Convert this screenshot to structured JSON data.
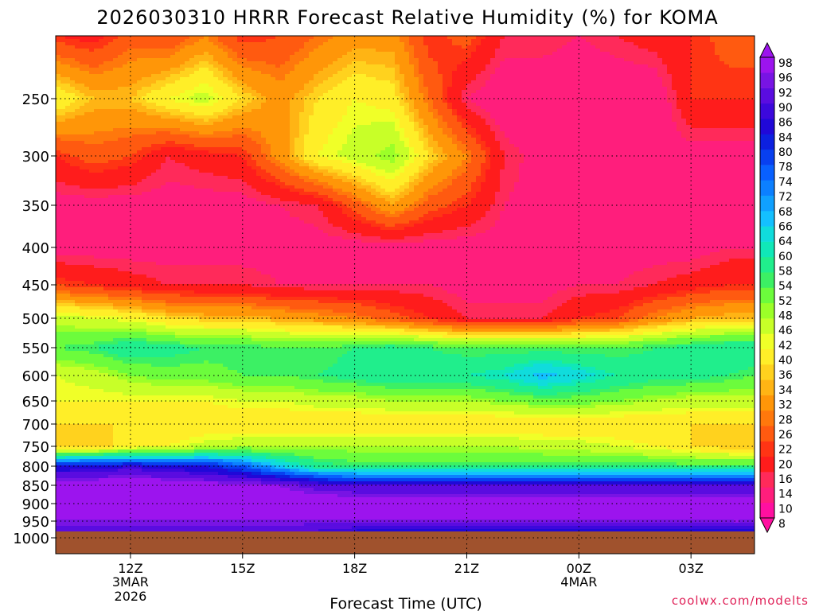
{
  "chart_data": {
    "type": "heatmap",
    "title": "2026030310 HRRR Forecast Relative Humidity (%) for KOMA",
    "xlabel": "Forecast Time (UTC)",
    "ylabel": "",
    "watermark": "coolwx.com/modelts",
    "x_range_hours": [
      10.0,
      28.7
    ],
    "y_range_hpa": [
      200,
      1030
    ],
    "x_ticks": [
      {
        "hour": 12,
        "label": "12Z",
        "sub1": "3MAR",
        "sub2": "2026"
      },
      {
        "hour": 15,
        "label": "15Z",
        "sub1": "",
        "sub2": ""
      },
      {
        "hour": 18,
        "label": "18Z",
        "sub1": "",
        "sub2": ""
      },
      {
        "hour": 21,
        "label": "21Z",
        "sub1": "",
        "sub2": ""
      },
      {
        "hour": 24,
        "label": "00Z",
        "sub1": "4MAR",
        "sub2": ""
      },
      {
        "hour": 27,
        "label": "03Z",
        "sub1": "",
        "sub2": ""
      }
    ],
    "y_ticks": [
      250,
      300,
      350,
      400,
      450,
      500,
      550,
      600,
      650,
      700,
      750,
      800,
      850,
      900,
      950,
      1000
    ],
    "y_tick_labels": [
      "250",
      "300",
      "350",
      "400",
      "450",
      "500",
      "550",
      "600",
      "650",
      "700",
      "750",
      "800",
      "850",
      "900",
      "950",
      "1000"
    ],
    "colorbar_levels": [
      8,
      10,
      14,
      16,
      20,
      22,
      26,
      28,
      32,
      34,
      36,
      40,
      42,
      46,
      48,
      52,
      54,
      58,
      60,
      64,
      66,
      68,
      72,
      74,
      78,
      80,
      84,
      86,
      90,
      92,
      96,
      98
    ],
    "colorbar_labels": [
      "8",
      "10",
      "14",
      "16",
      "20",
      "22",
      "26",
      "28",
      "32",
      "34",
      "36",
      "40",
      "42",
      "46",
      "48",
      "52",
      "54",
      "58",
      "60",
      "64",
      "66",
      "68",
      "72",
      "74",
      "78",
      "80",
      "84",
      "86",
      "90",
      "92",
      "96",
      "98"
    ],
    "colorbar_colors": [
      "#ff10a0",
      "#ff1e7c",
      "#ff2a5a",
      "#ff1c1c",
      "#ff3414",
      "#ff5a10",
      "#ff780c",
      "#ff9608",
      "#ffb414",
      "#ffd21e",
      "#ffee28",
      "#f0ff28",
      "#c8ff28",
      "#9cff28",
      "#6cfc3c",
      "#3cf064",
      "#20ee8c",
      "#10e8b8",
      "#10dcdc",
      "#14c0ff",
      "#10a0ff",
      "#0c80ff",
      "#0860ff",
      "#0840f0",
      "#0c20e0",
      "#2008d8",
      "#3c08dc",
      "#5a0ce0",
      "#7814e4",
      "#9c14ee"
    ],
    "ground_level_hpa": 975,
    "ground_color": "#a0522d",
    "time_hours": [
      10,
      11,
      12,
      13,
      14,
      15,
      16,
      17,
      18,
      19,
      20,
      21,
      22,
      23,
      24,
      25,
      26,
      27,
      28,
      28.7
    ],
    "profile_levels_hpa": [
      200,
      250,
      300,
      350,
      400,
      450,
      500,
      550,
      600,
      650,
      700,
      750,
      800,
      850,
      900,
      950,
      975
    ],
    "rh_percent": [
      [
        20,
        40,
        20,
        12,
        12,
        22,
        44,
        52,
        42,
        40,
        36,
        34,
        80,
        96,
        96,
        92,
        88
      ],
      [
        18,
        34,
        24,
        12,
        12,
        20,
        42,
        54,
        44,
        40,
        36,
        34,
        82,
        96,
        96,
        92,
        88
      ],
      [
        24,
        34,
        22,
        12,
        12,
        18,
        40,
        58,
        48,
        40,
        36,
        38,
        84,
        96,
        96,
        92,
        88
      ],
      [
        22,
        40,
        16,
        12,
        12,
        16,
        36,
        56,
        50,
        40,
        36,
        40,
        82,
        96,
        96,
        92,
        88
      ],
      [
        28,
        44,
        18,
        12,
        12,
        16,
        34,
        54,
        50,
        40,
        36,
        44,
        80,
        94,
        96,
        92,
        88
      ],
      [
        20,
        36,
        20,
        12,
        12,
        16,
        34,
        54,
        52,
        42,
        36,
        46,
        74,
        94,
        96,
        92,
        88
      ],
      [
        22,
        30,
        30,
        14,
        12,
        14,
        32,
        52,
        52,
        42,
        36,
        46,
        64,
        92,
        96,
        92,
        88
      ],
      [
        26,
        36,
        40,
        16,
        12,
        14,
        30,
        52,
        54,
        44,
        36,
        46,
        56,
        88,
        96,
        92,
        86
      ],
      [
        30,
        40,
        44,
        24,
        12,
        14,
        28,
        54,
        56,
        44,
        36,
        46,
        54,
        86,
        96,
        92,
        84
      ],
      [
        30,
        38,
        48,
        32,
        12,
        14,
        24,
        56,
        58,
        46,
        36,
        46,
        54,
        86,
        96,
        92,
        84
      ],
      [
        20,
        26,
        36,
        24,
        12,
        14,
        20,
        54,
        58,
        46,
        36,
        46,
        54,
        86,
        96,
        92,
        84
      ],
      [
        24,
        14,
        28,
        20,
        12,
        12,
        16,
        52,
        58,
        46,
        36,
        46,
        54,
        86,
        96,
        92,
        84
      ],
      [
        16,
        10,
        16,
        14,
        12,
        12,
        16,
        52,
        60,
        48,
        36,
        46,
        54,
        86,
        96,
        92,
        84
      ],
      [
        16,
        10,
        12,
        12,
        12,
        12,
        16,
        52,
        66,
        50,
        36,
        44,
        54,
        86,
        96,
        92,
        84
      ],
      [
        14,
        10,
        12,
        10,
        12,
        14,
        20,
        52,
        62,
        50,
        36,
        44,
        54,
        86,
        96,
        92,
        84
      ],
      [
        16,
        10,
        12,
        10,
        12,
        14,
        22,
        52,
        58,
        48,
        36,
        42,
        54,
        86,
        96,
        92,
        84
      ],
      [
        18,
        10,
        12,
        10,
        12,
        16,
        28,
        54,
        56,
        46,
        36,
        40,
        54,
        86,
        96,
        92,
        84
      ],
      [
        20,
        20,
        12,
        10,
        12,
        18,
        32,
        56,
        56,
        44,
        36,
        36,
        54,
        86,
        96,
        92,
        84
      ],
      [
        24,
        20,
        12,
        12,
        14,
        20,
        34,
        58,
        54,
        44,
        36,
        34,
        54,
        86,
        96,
        92,
        84
      ],
      [
        24,
        20,
        12,
        12,
        14,
        20,
        34,
        58,
        52,
        44,
        36,
        34,
        54,
        86,
        96,
        92,
        84
      ]
    ]
  }
}
